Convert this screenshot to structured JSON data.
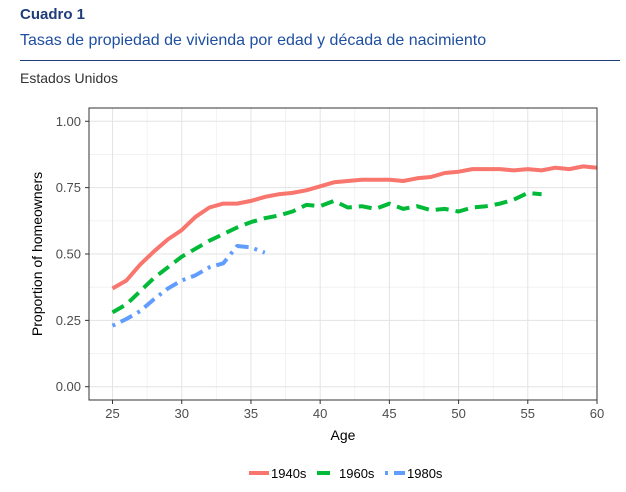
{
  "header": {
    "cuadro": "Cuadro 1",
    "subtitle": "Tasas de propiedad de vivienda por edad y década de nacimiento",
    "region": "Estados Unidos"
  },
  "chart_data": {
    "type": "line",
    "xlabel": "Age",
    "ylabel": "Proportion of homeowners",
    "xlim": [
      25,
      60
    ],
    "ylim": [
      0,
      1
    ],
    "xticks": [
      "25",
      "30",
      "35",
      "40",
      "45",
      "50",
      "55",
      "60"
    ],
    "yticks": [
      "0.00",
      "0.25",
      "0.50",
      "0.75",
      "1.00"
    ],
    "grid": true,
    "legend_position": "bottom",
    "series": [
      {
        "name": "1940s",
        "color": "#f8766d",
        "dash": "solid",
        "x": [
          25,
          26,
          27,
          28,
          29,
          30,
          31,
          32,
          33,
          34,
          35,
          36,
          37,
          38,
          39,
          40,
          41,
          42,
          43,
          44,
          45,
          46,
          47,
          48,
          49,
          50,
          51,
          52,
          53,
          54,
          55,
          56,
          57,
          58,
          59,
          60
        ],
        "y": [
          0.37,
          0.4,
          0.46,
          0.51,
          0.555,
          0.59,
          0.64,
          0.675,
          0.69,
          0.69,
          0.7,
          0.715,
          0.725,
          0.73,
          0.74,
          0.755,
          0.77,
          0.775,
          0.78,
          0.78,
          0.78,
          0.775,
          0.785,
          0.79,
          0.805,
          0.81,
          0.82,
          0.82,
          0.82,
          0.815,
          0.82,
          0.815,
          0.825,
          0.82,
          0.83,
          0.825
        ]
      },
      {
        "name": "1960s",
        "color": "#00ba38",
        "dash": "dashed",
        "x": [
          25,
          26,
          27,
          28,
          29,
          30,
          31,
          32,
          33,
          34,
          35,
          36,
          37,
          38,
          39,
          40,
          41,
          42,
          43,
          44,
          45,
          46,
          47,
          48,
          49,
          50,
          51,
          52,
          53,
          54,
          55,
          56
        ],
        "y": [
          0.28,
          0.31,
          0.36,
          0.41,
          0.45,
          0.49,
          0.52,
          0.55,
          0.575,
          0.6,
          0.62,
          0.635,
          0.645,
          0.66,
          0.685,
          0.68,
          0.7,
          0.675,
          0.68,
          0.67,
          0.69,
          0.67,
          0.68,
          0.665,
          0.67,
          0.66,
          0.675,
          0.68,
          0.69,
          0.705,
          0.73,
          0.725
        ]
      },
      {
        "name": "1980s",
        "color": "#619cff",
        "dash": "dotdash",
        "x": [
          25,
          26,
          27,
          28,
          29,
          30,
          31,
          32,
          33,
          34,
          35,
          36
        ],
        "y": [
          0.23,
          0.255,
          0.285,
          0.33,
          0.37,
          0.4,
          0.42,
          0.45,
          0.465,
          0.53,
          0.525,
          0.505
        ]
      }
    ]
  }
}
